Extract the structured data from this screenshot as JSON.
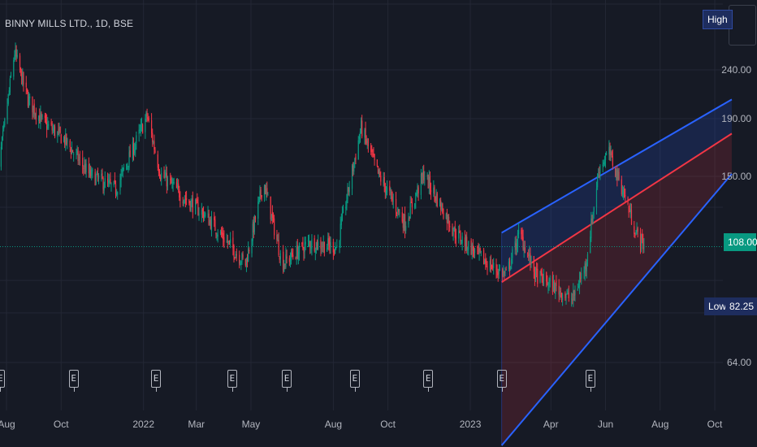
{
  "header": {
    "symbol": "BINNY MILLS LTD., 1D, BSE"
  },
  "tags": {
    "high_label": "High",
    "low_label": "Low",
    "low_value": "82.25",
    "last_value": "108.00"
  },
  "earnings_label": "E",
  "earnings_dates_x_labels": [
    "Aug",
    "Oct",
    "2022",
    "Mar",
    "May",
    "Aug",
    "Oct",
    "2023"
  ],
  "chart_data": {
    "type": "candlestick",
    "x_axis": {
      "labels": [
        "Aug",
        "Oct",
        "2022",
        "Mar",
        "May",
        "Aug",
        "Oct",
        "2023",
        "Apr",
        "Jun",
        "Aug",
        "Oct"
      ]
    },
    "y_axis": {
      "scale": "log",
      "labels": [
        "240.00",
        "190.00",
        "150.00",
        "108.00",
        "82.25",
        "64.00"
      ],
      "ticks": [
        240,
        190,
        150,
        64
      ],
      "range": [
        55,
        300
      ]
    },
    "last_price": 108.0,
    "low_price": 82.25,
    "price_path": [
      [
        "2021-07-20",
        140
      ],
      [
        "2021-08-10",
        260
      ],
      [
        "2021-08-25",
        210
      ],
      [
        "2021-09-10",
        190
      ],
      [
        "2021-10-05",
        175
      ],
      [
        "2021-11-01",
        150
      ],
      [
        "2021-12-01",
        140
      ],
      [
        "2022-01-05",
        195
      ],
      [
        "2022-01-20",
        150
      ],
      [
        "2022-02-15",
        135
      ],
      [
        "2022-03-10",
        125
      ],
      [
        "2022-04-05",
        110
      ],
      [
        "2022-04-25",
        100
      ],
      [
        "2022-05-15",
        145
      ],
      [
        "2022-06-05",
        100
      ],
      [
        "2022-07-05",
        110
      ],
      [
        "2022-08-05",
        108
      ],
      [
        "2022-09-01",
        185
      ],
      [
        "2022-09-20",
        150
      ],
      [
        "2022-10-20",
        120
      ],
      [
        "2022-11-10",
        150
      ],
      [
        "2022-12-15",
        115
      ],
      [
        "2023-01-20",
        100
      ],
      [
        "2023-02-10",
        95
      ],
      [
        "2023-02-25",
        115
      ],
      [
        "2023-03-15",
        95
      ],
      [
        "2023-04-05",
        90
      ],
      [
        "2023-04-25",
        85
      ],
      [
        "2023-05-10",
        100
      ],
      [
        "2023-05-25",
        155
      ],
      [
        "2023-06-05",
        165
      ],
      [
        "2023-06-20",
        140
      ],
      [
        "2023-07-05",
        115
      ],
      [
        "2023-07-15",
        108
      ]
    ],
    "channel": {
      "start": "2023-02-05",
      "end": "2023-10-20",
      "upper": [
        115,
        210
      ],
      "middle": [
        92,
        180
      ],
      "lower": [
        44,
        150
      ]
    },
    "earnings_markers": [
      "2021-07-25",
      "2021-10-15",
      "2022-01-15",
      "2022-04-10",
      "2022-06-10",
      "2022-08-25",
      "2022-11-15",
      "2023-02-05",
      "2023-05-15"
    ],
    "colors": {
      "up": "#089981",
      "down": "#f23645",
      "channel_upper": "#2962ff",
      "channel_middle": "#f23645",
      "channel_upper_fill": "#2962ff",
      "channel_lower_fill": "#f23645",
      "last_line": "#089981"
    }
  }
}
